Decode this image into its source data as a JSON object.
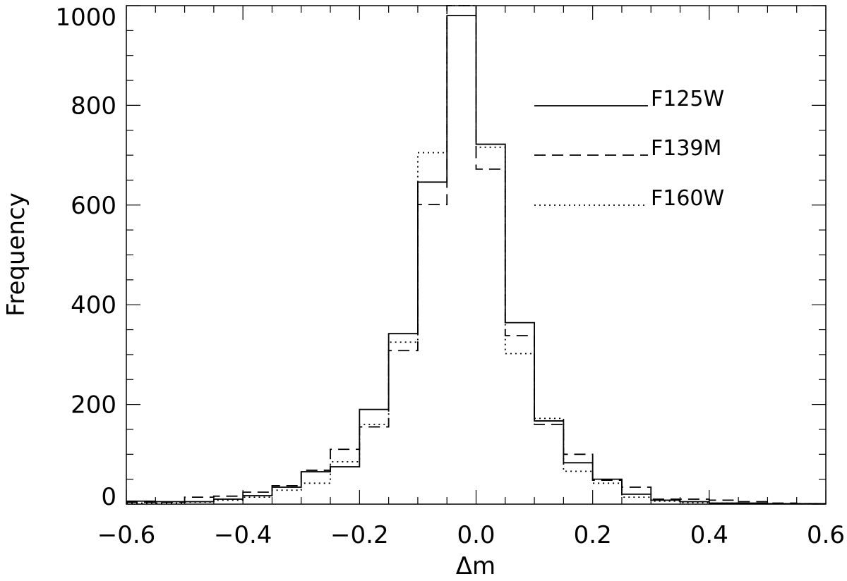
{
  "chart_data": {
    "type": "histogram",
    "xlabel": "Δm",
    "ylabel": "Frequency",
    "xlim": [
      -0.6,
      0.6
    ],
    "ylim": [
      0,
      1000
    ],
    "grid": false,
    "legend_placement": "top-right",
    "x_ticks": [
      -0.6,
      -0.4,
      -0.2,
      0.0,
      0.2,
      0.4,
      0.6
    ],
    "x_tick_labels": [
      "−0.6",
      "−0.4",
      "−0.2",
      "0.0",
      "0.2",
      "0.4",
      "0.6"
    ],
    "y_ticks": [
      0,
      200,
      400,
      600,
      800,
      1000
    ],
    "y_tick_labels": [
      "0",
      "200",
      "400",
      "600",
      "800",
      "1000"
    ],
    "bin_edges": [
      -0.6,
      -0.55,
      -0.5,
      -0.45,
      -0.4,
      -0.35,
      -0.3,
      -0.25,
      -0.2,
      -0.15,
      -0.1,
      -0.05,
      0.0,
      0.05,
      0.1,
      0.15,
      0.2,
      0.25,
      0.3,
      0.35,
      0.4,
      0.45,
      0.5,
      0.55,
      0.6
    ],
    "series": [
      {
        "name": "F125W",
        "line_style": "solid",
        "values": [
          6,
          5,
          5,
          10,
          17,
          34,
          65,
          75,
          190,
          342,
          646,
          980,
          722,
          364,
          167,
          83,
          50,
          20,
          8,
          5,
          2,
          2,
          1,
          1
        ]
      },
      {
        "name": "F139M",
        "line_style": "dashed",
        "values": [
          4,
          4,
          14,
          16,
          24,
          37,
          68,
          110,
          155,
          308,
          601,
          1005,
          672,
          338,
          160,
          100,
          48,
          34,
          10,
          10,
          8,
          5,
          2,
          1
        ]
      },
      {
        "name": "F160W",
        "line_style": "dotted",
        "values": [
          2,
          2,
          4,
          8,
          14,
          28,
          42,
          85,
          160,
          325,
          705,
          1000,
          716,
          302,
          172,
          66,
          42,
          14,
          6,
          3,
          2,
          1,
          1,
          1
        ]
      }
    ]
  }
}
